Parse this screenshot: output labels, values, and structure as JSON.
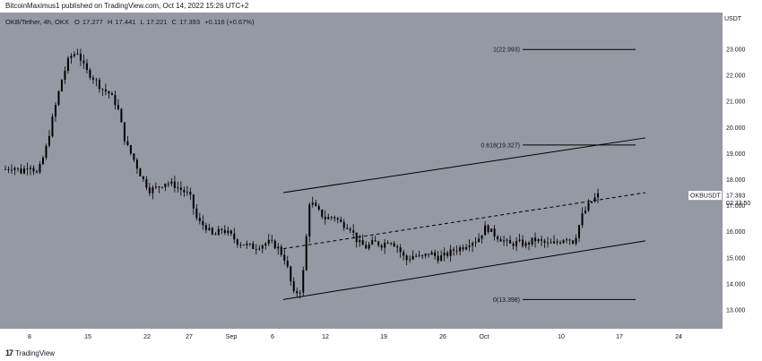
{
  "header": {
    "published_by": "BitcoinMaximus1 published on TradingView.com, Oct 14, 2022 15:26 UTC+2"
  },
  "footer": {
    "brand": "TradingView",
    "logo_mark": "17"
  },
  "colors": {
    "background": "#9599a3",
    "candle": "#000000",
    "line": "#000000",
    "price_tag_bg": "#ffffff"
  },
  "chart_data": {
    "type": "candlestick",
    "symbol_line": {
      "symbol": "OKB/Tether, 4h, OKX",
      "o_label": "O",
      "o_value": "17.277",
      "h_label": "H",
      "h_value": "17.441",
      "l_label": "L",
      "l_value": "17.221",
      "c_label": "C",
      "c_value": "17.393",
      "change": "+0.116 (+0.67%)"
    },
    "y_axis": {
      "unit": "USDT",
      "ticks": [
        "23.000",
        "22.000",
        "21.000",
        "20.000",
        "19.000",
        "18.000",
        "17.000",
        "16.000",
        "15.000",
        "14.000",
        "13.000"
      ],
      "ylim": [
        12.6,
        23.8
      ]
    },
    "x_axis": {
      "ticks": [
        "8",
        "15",
        "22",
        "27",
        "Sep",
        "6",
        "12",
        "19",
        "26",
        "Oct",
        "10",
        "17",
        "24"
      ]
    },
    "price_tag": {
      "label": "OKBUSDT",
      "price": "17.393",
      "countdown": "02:33:50",
      "value": 17.393
    },
    "fib_levels": [
      {
        "label": "1(22.993)",
        "value": 22.993
      },
      {
        "label": "0.618(19.327)",
        "value": 19.327
      },
      {
        "label": "0(13.398)",
        "value": 13.398
      }
    ],
    "channel": {
      "upper": {
        "start": 17.5,
        "end": 19.6
      },
      "middle_dashed": {
        "start": 15.35,
        "end": 17.5
      },
      "lower": {
        "start": 13.4,
        "end": 15.65
      }
    },
    "price_path": [
      18.4,
      18.5,
      18.3,
      18.6,
      18.2,
      19.1,
      20.5,
      21.8,
      22.7,
      22.9,
      22.2,
      21.9,
      21.5,
      21.3,
      20.8,
      19.4,
      18.8,
      18.1,
      17.6,
      17.7,
      17.9,
      17.8,
      17.6,
      17.4,
      16.4,
      16.2,
      15.8,
      16.1,
      15.9,
      15.6,
      15.5,
      15.4,
      15.5,
      15.6,
      15.4,
      14.9,
      13.6,
      13.8,
      17.2,
      16.8,
      16.5,
      16.6,
      16.3,
      16.2,
      15.6,
      15.4,
      15.6,
      15.5,
      15.7,
      15.4,
      14.9,
      15.1,
      15.0,
      15.2,
      15.0,
      15.1,
      15.3,
      15.4,
      15.6,
      15.7,
      16.2,
      15.9,
      15.7,
      15.5,
      15.6,
      15.5,
      15.7,
      15.6,
      15.5,
      15.6,
      15.8,
      15.6,
      16.6,
      17.1,
      17.4
    ]
  }
}
